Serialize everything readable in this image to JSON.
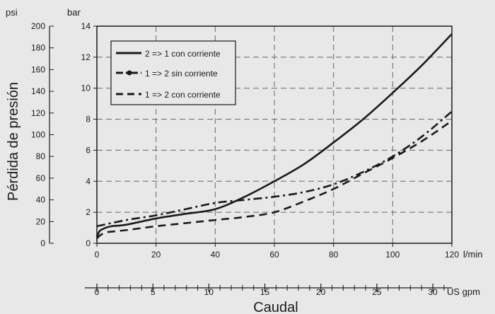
{
  "chart_data": {
    "type": "line",
    "ylabel": "Pérdida de presión",
    "xlabel": "Caudal",
    "unit_psi": "psi",
    "unit_bar": "bar",
    "unit_lmin": "l/min",
    "unit_gpm": "US gpm",
    "xlim": [
      0,
      120
    ],
    "ylim_bar": [
      0,
      14
    ],
    "ylim_psi": [
      0,
      200
    ],
    "x_ticks": [
      "0",
      "20",
      "40",
      "60",
      "80",
      "100",
      "120"
    ],
    "bar_ticks": [
      "0",
      "2",
      "4",
      "6",
      "8",
      "10",
      "12",
      "14"
    ],
    "psi_ticks": [
      "0",
      "20",
      "40",
      "60",
      "80",
      "100",
      "120",
      "140",
      "160",
      "180",
      "200"
    ],
    "gpm_ticks": [
      "0",
      "5",
      "10",
      "15",
      "20",
      "25",
      "30"
    ],
    "grid": true,
    "legend_position": "top-left",
    "series": [
      {
        "name": "2 => 1 con corriente",
        "style": "solid",
        "x": [
          0,
          1,
          3,
          5,
          10,
          20,
          30,
          40,
          50,
          60,
          70,
          80,
          90,
          100,
          110,
          120
        ],
        "y": [
          0.4,
          0.8,
          1.0,
          1.1,
          1.2,
          1.6,
          1.9,
          2.2,
          3.0,
          4.0,
          5.1,
          6.5,
          8.0,
          9.7,
          11.5,
          13.5
        ]
      },
      {
        "name": "1 => 2 sin corriente",
        "style": "dashdot",
        "x": [
          0,
          10,
          20,
          30,
          40,
          50,
          60,
          70,
          80,
          90,
          100,
          110,
          120
        ],
        "y": [
          1.1,
          1.5,
          1.8,
          2.2,
          2.6,
          2.8,
          3.0,
          3.3,
          3.8,
          4.6,
          5.6,
          6.9,
          8.5
        ]
      },
      {
        "name": "1 => 2 con corriente",
        "style": "dashed",
        "x": [
          0,
          1,
          3,
          5,
          10,
          20,
          30,
          40,
          50,
          60,
          70,
          80,
          90,
          100,
          110,
          120
        ],
        "y": [
          0.3,
          0.5,
          0.7,
          0.75,
          0.85,
          1.1,
          1.3,
          1.5,
          1.7,
          2.0,
          2.7,
          3.5,
          4.5,
          5.5,
          6.6,
          7.9
        ]
      }
    ]
  }
}
